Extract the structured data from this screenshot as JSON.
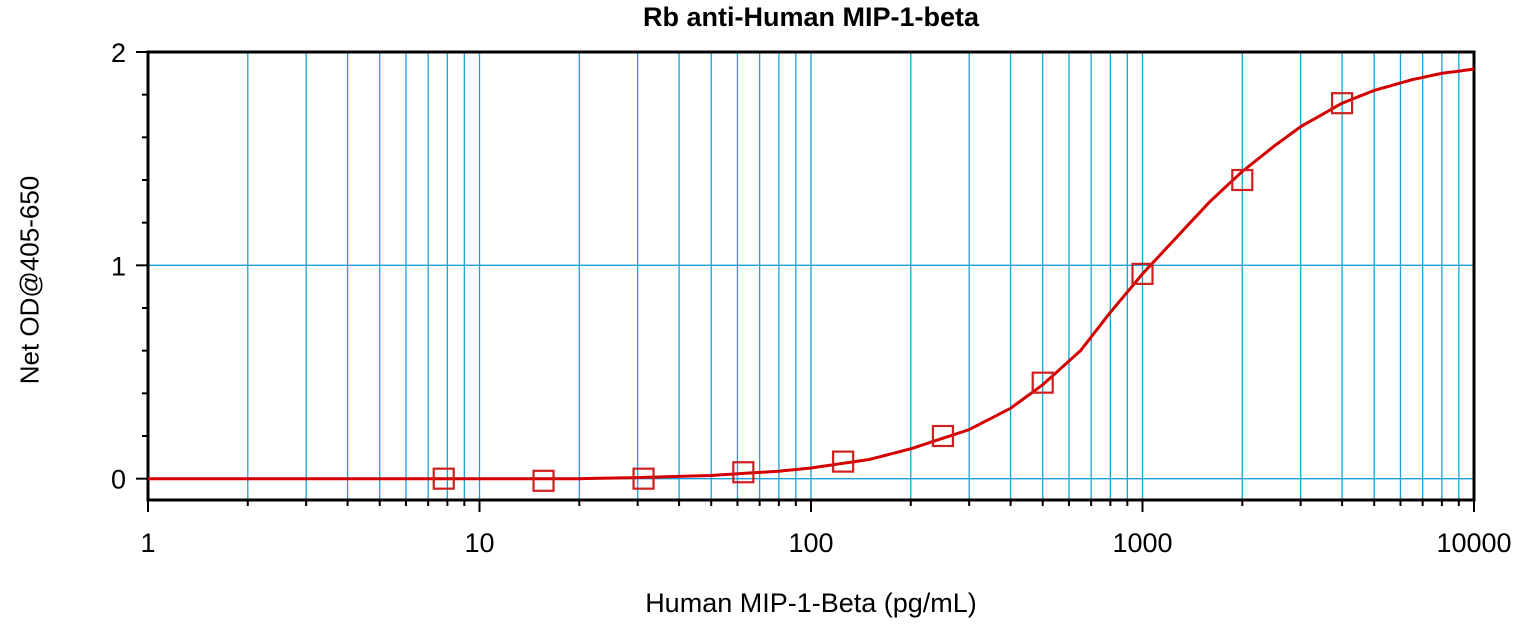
{
  "chart_data": {
    "type": "scatter",
    "title": "Rb anti-Human MIP-1-beta",
    "xlabel": "Human MIP-1-Beta (pg/mL)",
    "ylabel": "Net OD@405-650",
    "x_scale": "log",
    "xlim": [
      1,
      10000
    ],
    "ylim": [
      -0.1,
      2
    ],
    "x_tick_labels": [
      "1",
      "10",
      "100",
      "1000",
      "10000"
    ],
    "y_tick_labels": [
      "0",
      "1",
      "2"
    ],
    "grid": true,
    "series": [
      {
        "x": [
          7.8,
          15.6,
          31.25,
          62.5,
          125,
          250,
          500,
          1000,
          2000,
          4000
        ],
        "y": [
          0.0,
          -0.01,
          0.0,
          0.03,
          0.08,
          0.2,
          0.45,
          0.96,
          1.4,
          1.76
        ]
      }
    ],
    "fit_curve": {
      "x": [
        1,
        5,
        10,
        20,
        30,
        50,
        80,
        100,
        150,
        200,
        300,
        400,
        500,
        650,
        800,
        1000,
        1300,
        1600,
        2000,
        2500,
        3000,
        4000,
        5000,
        6500,
        8000,
        10000
      ],
      "y": [
        0.0,
        0.0,
        0.0,
        0.0,
        0.005,
        0.015,
        0.035,
        0.05,
        0.09,
        0.14,
        0.23,
        0.33,
        0.44,
        0.6,
        0.78,
        0.96,
        1.15,
        1.3,
        1.44,
        1.56,
        1.65,
        1.76,
        1.82,
        1.87,
        1.9,
        1.92
      ]
    },
    "colors": {
      "grid": "#1aa0dc",
      "markers": "#cc1f1f",
      "curve": "#d40000",
      "axis": "#000000"
    }
  }
}
